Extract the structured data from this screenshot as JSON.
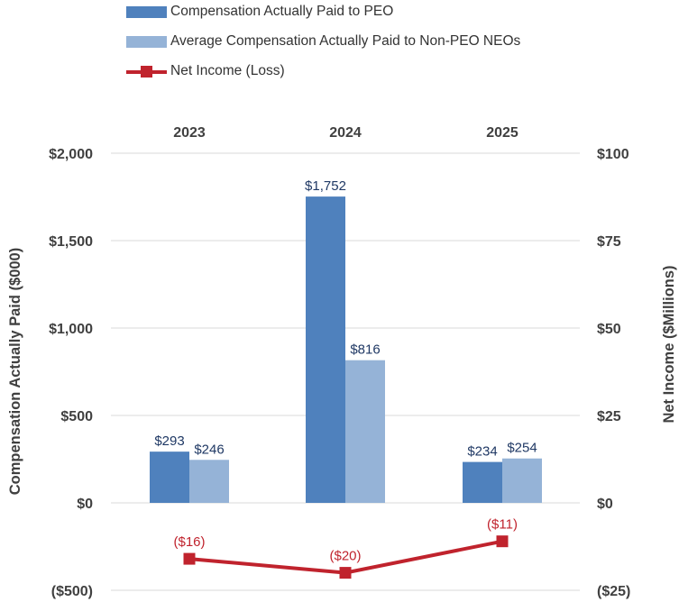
{
  "chart_data": {
    "type": "bar",
    "categories": [
      "2023",
      "2024",
      "2025"
    ],
    "series": [
      {
        "name": "Compensation Actually Paid to PEO",
        "axis": "left",
        "kind": "bar",
        "values": [
          293,
          1752,
          234
        ],
        "labels": [
          "$293",
          "$1,752",
          "$234"
        ],
        "color": "#4f81bd"
      },
      {
        "name": "Average Compensation Actually Paid to Non-PEO NEOs",
        "axis": "left",
        "kind": "bar",
        "values": [
          246,
          816,
          254
        ],
        "labels": [
          "$246",
          "$816",
          "$254"
        ],
        "color": "#95b3d7"
      },
      {
        "name": "Net Income (Loss)",
        "axis": "right",
        "kind": "line",
        "values": [
          -16,
          -20,
          -11
        ],
        "labels": [
          "($16)",
          "($20)",
          "($11)"
        ],
        "color": "#c0232d"
      }
    ],
    "ylabel": "Compensation Actually Paid ($000)",
    "y2label": "Net Income ($Millions)",
    "ylim": [
      -500,
      2000
    ],
    "y2lim": [
      -25,
      100
    ],
    "yticks": [
      "($500)",
      "$0",
      "$500",
      "$1,000",
      "$1,500",
      "$2,000"
    ],
    "y2ticks": [
      "($25)",
      "$0",
      "$25",
      "$50",
      "$75",
      "$100"
    ],
    "category_axis_position": "top",
    "grid": true,
    "legend_position": "top-left",
    "label_color": "#1f3864",
    "line_label_color": "#c0232d",
    "axis_text_color": "#404040",
    "grid_color": "#d9d9d9"
  }
}
